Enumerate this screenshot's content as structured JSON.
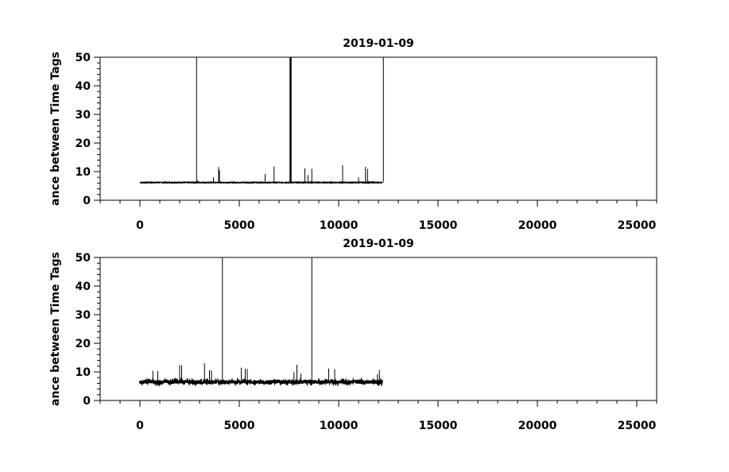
{
  "chart_data": [
    {
      "type": "line",
      "title": "2019-01-09",
      "xlabel": "",
      "ylabel": "ance between Time Tags",
      "xlim": [
        -2000,
        26000
      ],
      "ylim": [
        0,
        50
      ],
      "xticks": [
        0,
        5000,
        10000,
        15000,
        20000,
        25000
      ],
      "yticks": [
        0,
        10,
        20,
        30,
        40,
        50
      ],
      "grid": false,
      "baseline": {
        "x_start": 0,
        "x_end": 12200,
        "y": 6.2
      },
      "spikes": [
        {
          "x": 2850,
          "y": 50
        },
        {
          "x": 2900,
          "y": 7
        },
        {
          "x": 3700,
          "y": 8
        },
        {
          "x": 3960,
          "y": 11.6
        },
        {
          "x": 4000,
          "y": 10.5
        },
        {
          "x": 6300,
          "y": 9.2
        },
        {
          "x": 6750,
          "y": 11.8
        },
        {
          "x": 7550,
          "y": 50
        },
        {
          "x": 7580,
          "y": 50
        },
        {
          "x": 7610,
          "y": 50
        },
        {
          "x": 8300,
          "y": 11.1
        },
        {
          "x": 8450,
          "y": 8.8
        },
        {
          "x": 8650,
          "y": 11.0
        },
        {
          "x": 10200,
          "y": 12.3
        },
        {
          "x": 11000,
          "y": 8.0
        },
        {
          "x": 11350,
          "y": 11.7
        },
        {
          "x": 11450,
          "y": 11.0
        },
        {
          "x": 12250,
          "y": 50
        }
      ]
    },
    {
      "type": "line",
      "title": "2019-01-09",
      "xlabel": "",
      "ylabel": "ance between Time Tags",
      "xlim": [
        -2000,
        26000
      ],
      "ylim": [
        0,
        50
      ],
      "xticks": [
        0,
        5000,
        10000,
        15000,
        20000,
        25000
      ],
      "yticks": [
        0,
        10,
        20,
        30,
        40,
        50
      ],
      "grid": false,
      "baseline": {
        "x_start": 0,
        "x_end": 12200,
        "y": 6.5
      },
      "spikes": [
        {
          "x": 650,
          "y": 10.4
        },
        {
          "x": 900,
          "y": 10.3
        },
        {
          "x": 2000,
          "y": 12.4
        },
        {
          "x": 2100,
          "y": 12.3
        },
        {
          "x": 3250,
          "y": 13.0
        },
        {
          "x": 3500,
          "y": 10.6
        },
        {
          "x": 3600,
          "y": 10.5
        },
        {
          "x": 4150,
          "y": 50
        },
        {
          "x": 5100,
          "y": 11.5
        },
        {
          "x": 5300,
          "y": 11.1
        },
        {
          "x": 5400,
          "y": 11.0
        },
        {
          "x": 7750,
          "y": 9.9
        },
        {
          "x": 7900,
          "y": 12.5
        },
        {
          "x": 8100,
          "y": 9.4
        },
        {
          "x": 8650,
          "y": 50
        },
        {
          "x": 9500,
          "y": 11.2
        },
        {
          "x": 9800,
          "y": 10.9
        },
        {
          "x": 11950,
          "y": 9.2
        },
        {
          "x": 12050,
          "y": 10.7
        }
      ]
    }
  ]
}
